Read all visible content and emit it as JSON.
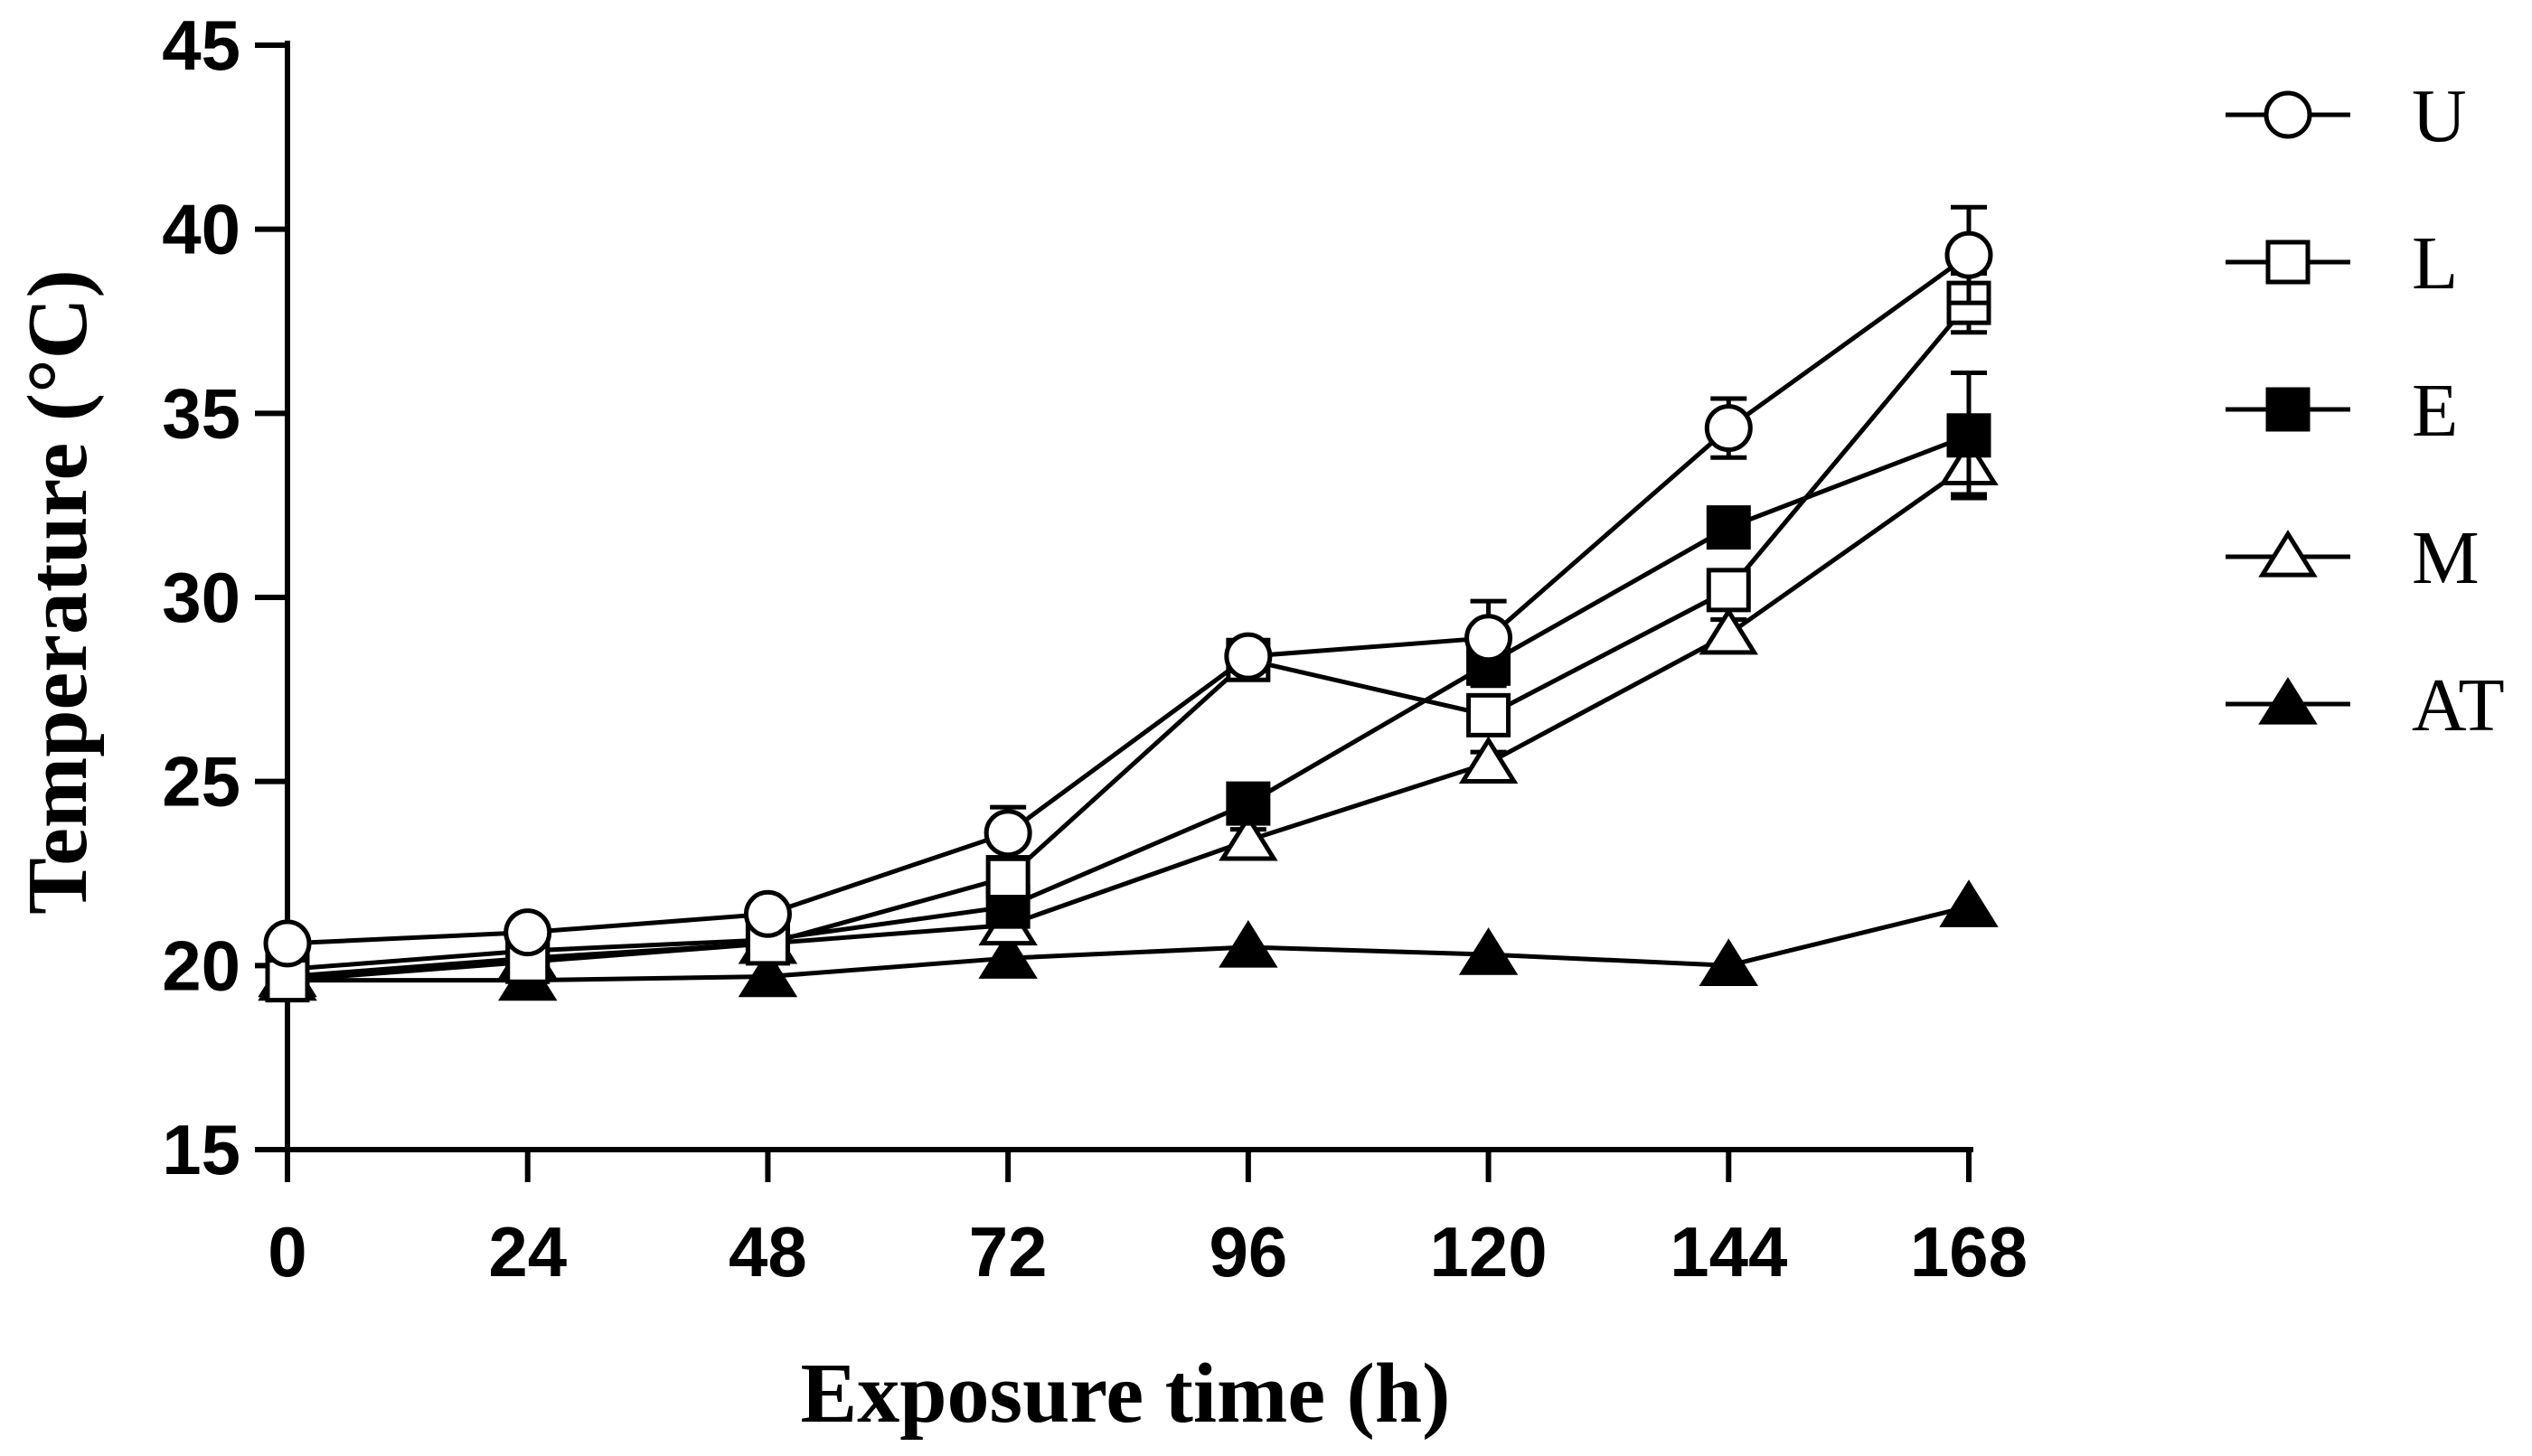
{
  "chart_data": {
    "type": "line",
    "title": "",
    "xlabel": "Exposure time (h)",
    "ylabel": "Temperature (°C)",
    "x": [
      0,
      24,
      48,
      72,
      96,
      120,
      144,
      168
    ],
    "x_tick_labels": [
      "0",
      "24",
      "48",
      "72",
      "96",
      "120",
      "144",
      "168"
    ],
    "y_tick_labels": [
      "15",
      "20",
      "25",
      "30",
      "35",
      "40",
      "45"
    ],
    "xlim": [
      0,
      168
    ],
    "ylim": [
      15,
      45
    ],
    "y_ticks": [
      15,
      20,
      25,
      30,
      35,
      40,
      45
    ],
    "grid": false,
    "legend_position": "right",
    "series": [
      {
        "name": "U",
        "marker": "open-circle",
        "values": [
          20.6,
          20.9,
          21.4,
          23.6,
          28.4,
          28.9,
          34.6,
          39.3
        ],
        "errors": [
          0.1,
          0.1,
          0.2,
          0.7,
          0.4,
          1.0,
          0.8,
          1.3
        ]
      },
      {
        "name": "L",
        "marker": "open-square",
        "values": [
          19.6,
          20.1,
          20.6,
          22.4,
          28.3,
          26.8,
          30.2,
          38.0
        ],
        "errors": [
          0.1,
          0.1,
          0.1,
          0.3,
          0.4,
          0.4,
          0.4,
          0.8
        ]
      },
      {
        "name": "E",
        "marker": "filled-square",
        "values": [
          19.9,
          20.4,
          20.7,
          21.6,
          24.4,
          28.2,
          31.9,
          34.4
        ],
        "errors": [
          0.1,
          0.1,
          0.1,
          0.2,
          0.3,
          0.6,
          0.4,
          1.7
        ]
      },
      {
        "name": "M",
        "marker": "open-triangle",
        "values": [
          19.7,
          20.2,
          20.6,
          21.1,
          23.4,
          25.5,
          29.0,
          33.6
        ],
        "errors": [
          0.1,
          0.1,
          0.1,
          0.2,
          0.3,
          0.3,
          0.4,
          0.8
        ]
      },
      {
        "name": "AT",
        "marker": "filled-triangle",
        "values": [
          19.6,
          19.6,
          19.7,
          20.2,
          20.5,
          20.3,
          20.0,
          21.6
        ],
        "errors": [
          0,
          0,
          0,
          0,
          0,
          0,
          0,
          0
        ]
      }
    ]
  }
}
